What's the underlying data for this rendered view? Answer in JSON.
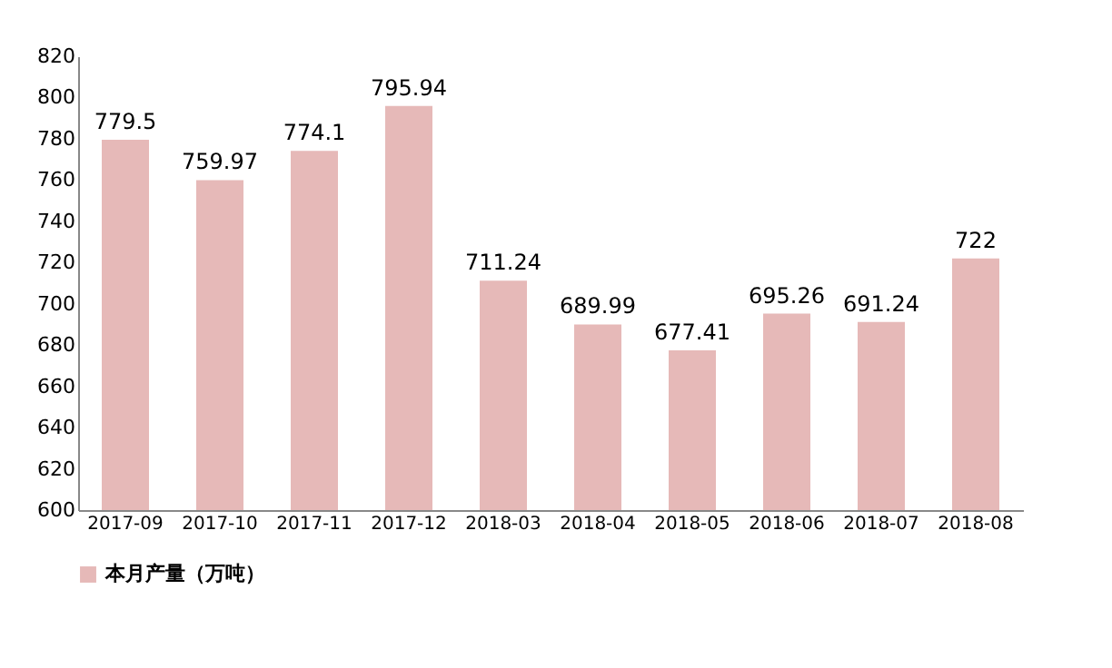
{
  "chart_data": {
    "type": "bar",
    "categories": [
      "2017-09",
      "2017-10",
      "2017-11",
      "2017-12",
      "2018-03",
      "2018-04",
      "2018-05",
      "2018-06",
      "2018-07",
      "2018-08"
    ],
    "series": [
      {
        "name": "本月产量（万吨）",
        "color": "#e6b9b8",
        "values": [
          779.5,
          759.97,
          774.1,
          795.94,
          711.24,
          689.99,
          677.41,
          695.26,
          691.24,
          722
        ]
      }
    ],
    "ylim": [
      600,
      820
    ],
    "yticks": [
      600,
      620,
      640,
      660,
      680,
      700,
      720,
      740,
      760,
      780,
      800,
      820
    ],
    "data_labels": true,
    "legend": "bottom left",
    "grid": false
  }
}
